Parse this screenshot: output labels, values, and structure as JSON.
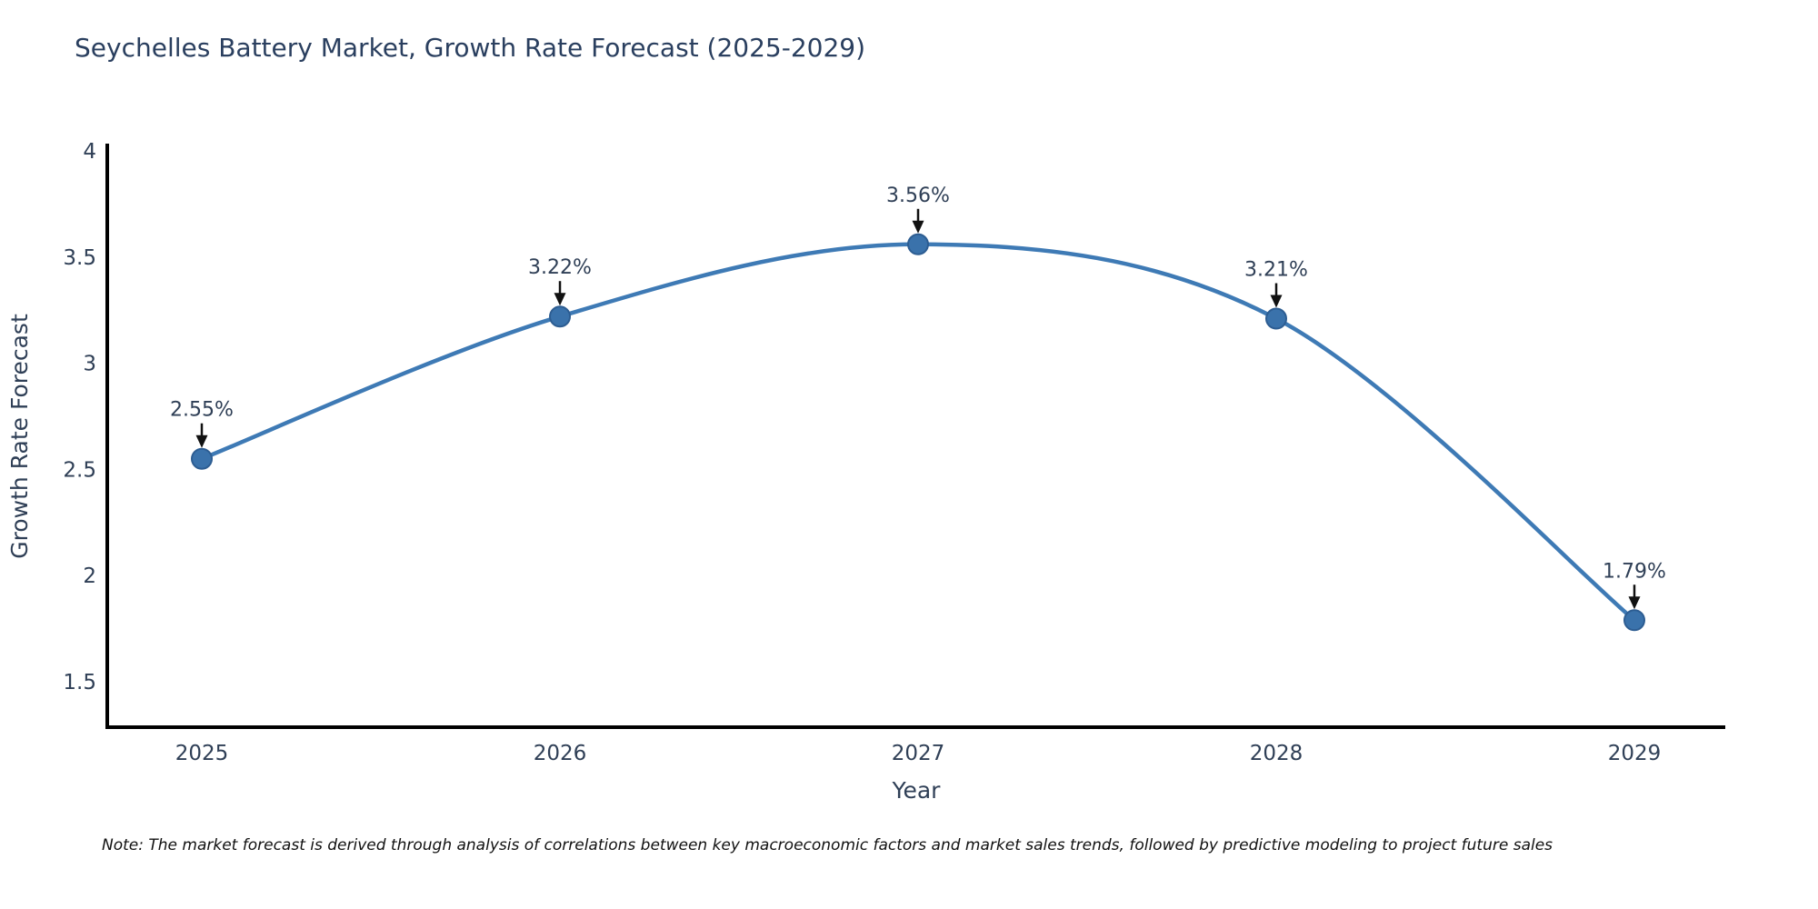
{
  "page": {
    "note": "Note: The market forecast is derived through analysis of correlations between key macroeconomic factors and market sales trends, followed by predictive modeling to project future sales"
  },
  "chart_data": {
    "type": "line",
    "title": "Seychelles Battery Market, Growth Rate Forecast (2025-2029)",
    "xlabel": "Year",
    "ylabel": "Growth Rate Forecast",
    "x": [
      2025,
      2026,
      2027,
      2028,
      2029
    ],
    "values": [
      2.55,
      3.22,
      3.56,
      3.21,
      1.79
    ],
    "point_labels": [
      "2.55%",
      "3.22%",
      "3.56%",
      "3.21%",
      "1.79%"
    ],
    "x_tick_labels": [
      "2025",
      "2026",
      "2027",
      "2028",
      "2029"
    ],
    "y_tick_values": [
      4,
      3.5,
      3,
      2.5,
      2,
      1.5
    ],
    "y_tick_labels": [
      "4",
      "3.5",
      "3",
      "2.5",
      "2",
      "1.5"
    ],
    "ylim": [
      1.28,
      4.04
    ],
    "xlim": [
      2024.74,
      2029.26
    ],
    "grid": false,
    "legend_position": "none",
    "curve_style": "spline",
    "line_color": "#3e7ab5",
    "marker_color": "#3a72ab",
    "marker_edge_color": "#2d5d92",
    "annotation_arrow_color": "#111111",
    "axis_line_color": "#000000",
    "title_color": "#2a3f5f",
    "tick_text_color": "#2f3f56"
  }
}
